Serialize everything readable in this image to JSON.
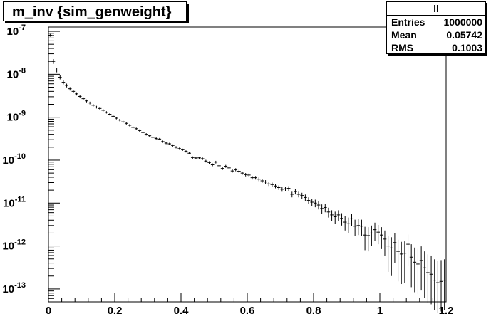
{
  "title": "m_inv {sim_genweight}",
  "stats": {
    "name": "ll",
    "rows": [
      {
        "label": "Entries",
        "value": "1000000"
      },
      {
        "label": "Mean",
        "value": "0.05742"
      },
      {
        "label": "RMS",
        "value": "0.1003"
      }
    ]
  },
  "chart_data": {
    "type": "scatter",
    "title": "m_inv {sim_genweight}",
    "xlabel": "",
    "ylabel": "",
    "xlim": [
      0,
      1.2
    ],
    "ylim_log10": [
      -13.3,
      -6.9
    ],
    "ylog": true,
    "grid": false,
    "legend": "none",
    "bin_width": 0.01,
    "x_ticks": [
      "0",
      "0.2",
      "0.4",
      "0.6",
      "0.8",
      "1",
      "1.2"
    ],
    "y_ticks": [
      {
        "base": "10",
        "exp": "-7"
      },
      {
        "base": "10",
        "exp": "-8"
      },
      {
        "base": "10",
        "exp": "-9"
      },
      {
        "base": "10",
        "exp": "-10"
      },
      {
        "base": "10",
        "exp": "-11"
      },
      {
        "base": "10",
        "exp": "-12"
      },
      {
        "base": "10",
        "exp": "-13"
      }
    ],
    "series": [
      {
        "x": [
          0.005,
          0.015,
          0.025,
          0.035,
          0.045,
          0.055,
          0.065,
          0.075,
          0.085,
          0.095,
          0.105,
          0.115,
          0.125,
          0.135,
          0.145,
          0.155,
          0.165,
          0.175,
          0.185,
          0.195,
          0.205,
          0.215,
          0.225,
          0.235,
          0.245,
          0.255,
          0.265,
          0.275,
          0.285,
          0.295,
          0.305,
          0.315,
          0.325,
          0.335,
          0.345,
          0.355,
          0.365,
          0.375,
          0.385,
          0.395,
          0.405,
          0.415,
          0.425,
          0.435,
          0.445,
          0.455,
          0.465,
          0.475,
          0.485,
          0.495,
          0.505,
          0.515,
          0.525,
          0.535,
          0.545,
          0.555,
          0.565,
          0.575,
          0.585,
          0.595,
          0.605,
          0.615,
          0.625,
          0.635,
          0.645,
          0.655,
          0.665,
          0.675,
          0.685,
          0.695,
          0.705,
          0.715,
          0.725,
          0.735,
          0.745,
          0.755,
          0.765,
          0.775,
          0.785,
          0.795,
          0.805,
          0.815,
          0.825,
          0.835,
          0.845,
          0.855,
          0.865,
          0.875,
          0.885,
          0.895,
          0.905,
          0.915,
          0.925,
          0.935,
          0.945,
          0.955,
          0.965,
          0.975,
          0.985,
          0.995,
          1.005,
          1.015,
          1.025,
          1.035,
          1.045,
          1.055,
          1.065,
          1.075,
          1.085,
          1.095,
          1.105,
          1.115,
          1.125,
          1.135,
          1.145,
          1.155,
          1.165,
          1.175,
          1.185,
          1.195
        ],
        "y": [
          8.1e-08,
          2e-08,
          1.25e-08,
          8.5e-09,
          6.5e-09,
          5.5e-09,
          4.6e-09,
          4e-09,
          3.5e-09,
          3.05e-09,
          2.7e-09,
          2.4e-09,
          2.15e-09,
          1.9e-09,
          1.72e-09,
          1.6e-09,
          1.45e-09,
          1.3e-09,
          1.17e-09,
          1.05e-09,
          9.5e-10,
          8.6e-10,
          7.8e-10,
          7.2e-10,
          6.5e-10,
          5.8e-10,
          5.4e-10,
          4.9e-10,
          4.4e-10,
          4e-10,
          3.7e-10,
          3.4e-10,
          3.2e-10,
          3.1e-10,
          2.7e-10,
          2.5e-10,
          2.4e-10,
          2.2e-10,
          2e-10,
          1.85e-10,
          1.75e-10,
          1.6e-10,
          1.45e-10,
          1.15e-10,
          1.12e-10,
          1.13e-10,
          1.08e-10,
          9.5e-11,
          8.8e-11,
          7.8e-11,
          9e-11,
          7.4e-11,
          6.4e-11,
          7.2e-11,
          6.6e-11,
          5.6e-11,
          6e-11,
          5.5e-11,
          5e-11,
          4.6e-11,
          4.5e-11,
          3.9e-11,
          3.9e-11,
          3.6e-11,
          3.3e-11,
          3.1e-11,
          2.8e-11,
          2.7e-11,
          2.5e-11,
          2.3e-11,
          2.1e-11,
          2.15e-11,
          2.2e-11,
          1.6e-11,
          1.85e-11,
          1.6e-11,
          1.5e-11,
          1.35e-11,
          1.15e-11,
          1.05e-11,
          1e-11,
          9e-12,
          7.5e-12,
          7.9e-12,
          6.2e-12,
          5.3e-12,
          4.8e-12,
          5.3e-12,
          4.4e-12,
          3.6e-12,
          3.3e-12,
          4.3e-12,
          2.9e-12,
          3e-12,
          2.9e-12,
          1.8e-12,
          1.75e-12,
          2e-12,
          2.4e-12,
          2.1e-12,
          1.8e-12,
          1.45e-12,
          1e-12,
          9e-13,
          1.2e-12,
          7.5e-13,
          6.5e-13,
          6.8e-13,
          1.1e-12,
          5.5e-13,
          4.2e-13,
          3.8e-13,
          4.6e-13,
          3.1e-13,
          2.4e-13,
          2.2e-13,
          1.6e-13,
          1.4e-13,
          1.5e-13,
          1.6e-13
        ],
        "err": [
          6e-09,
          2.5e-09,
          1.4e-09,
          9e-10,
          6.5e-10,
          5.5e-10,
          4.2e-10,
          3.5e-10,
          3e-10,
          2.5e-10,
          2e-10,
          1.8e-10,
          1.5e-10,
          1.3e-10,
          1.2e-10,
          1.1e-10,
          9e-11,
          8e-11,
          7e-11,
          6.5e-11,
          6e-11,
          5.5e-11,
          5e-11,
          4.5e-11,
          4e-11,
          3.5e-11,
          3.2e-11,
          3e-11,
          2.7e-11,
          2.5e-11,
          2.2e-11,
          2e-11,
          1.9e-11,
          1.8e-11,
          1.6e-11,
          1.5e-11,
          1.4e-11,
          1.3e-11,
          1.2e-11,
          1.1e-11,
          1e-11,
          9.5e-12,
          9e-12,
          7.5e-12,
          7.3e-12,
          7.4e-12,
          7.1e-12,
          6.6e-12,
          6.3e-12,
          5.8e-12,
          6.4e-12,
          5.6e-12,
          5.1e-12,
          5.5e-12,
          5.2e-12,
          4.6e-12,
          4.9e-12,
          4.6e-12,
          4.3e-12,
          4.1e-12,
          4.1e-12,
          3.7e-12,
          3.7e-12,
          3.5e-12,
          3.3e-12,
          3.2e-12,
          3e-12,
          3e-12,
          2.9e-12,
          2.7e-12,
          2.6e-12,
          2.7e-12,
          2.7e-12,
          2.4e-12,
          2.6e-12,
          2.4e-12,
          2.4e-12,
          2.3e-12,
          2.1e-12,
          2e-12,
          2e-12,
          1.9e-12,
          1.8e-12,
          1.8e-12,
          1.6e-12,
          1.5e-12,
          1.5e-12,
          1.5e-12,
          1.4e-12,
          1.3e-12,
          1.3e-12,
          1.4e-12,
          1.2e-12,
          1.2e-12,
          1.2e-12,
          1e-12,
          1e-12,
          1e-12,
          1.1e-12,
          1e-12,
          9.5e-13,
          8.5e-13,
          7.5e-13,
          7e-13,
          8e-13,
          6.5e-13,
          6e-13,
          6e-13,
          7.5e-13,
          5.5e-13,
          5e-13,
          4.8e-13,
          5.2e-13,
          4.4e-13,
          4e-13,
          3.8e-13,
          3.3e-13,
          3.1e-13,
          3.2e-13,
          3.3e-13
        ]
      }
    ]
  }
}
